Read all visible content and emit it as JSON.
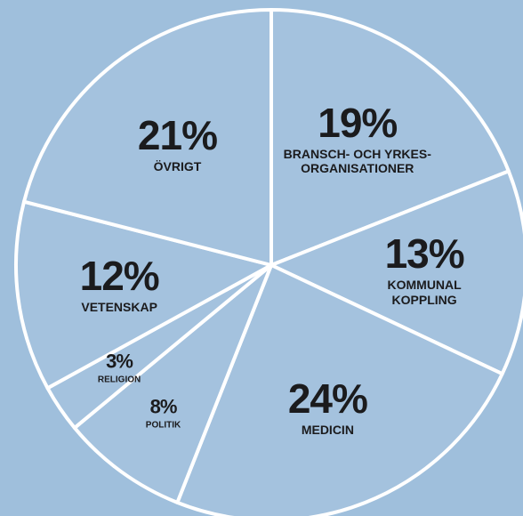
{
  "chart_data": {
    "type": "pie",
    "categories": [
      "BRANSCH- OCH YRKES-\nORGANISATIONER",
      "KOMMUNAL\nKOPPLING",
      "MEDICIN",
      "POLITIK",
      "RELIGION",
      "VETENSKAP",
      "ÖVRIGT"
    ],
    "values": [
      19,
      13,
      24,
      8,
      3,
      12,
      21
    ],
    "value_labels": [
      "19%",
      "13%",
      "24%",
      "8%",
      "3%",
      "12%",
      "21%"
    ],
    "color": "#a4c2de"
  }
}
